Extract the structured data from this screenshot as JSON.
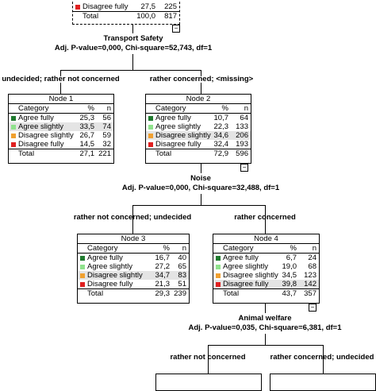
{
  "colors": {
    "agree_fully": "#1f7a2e",
    "agree_slightly": "#8fe28c",
    "disagree_slightly": "#f0a030",
    "disagree_fully": "#e02020",
    "highlight": "#e4e4e4"
  },
  "top_node": {
    "rows": [
      {
        "label": "Disagree fully",
        "pct": "27,5",
        "n": "225"
      }
    ],
    "total": {
      "label": "Total",
      "pct": "100,0",
      "n": "817"
    }
  },
  "split1": {
    "variable": "Transport Safety",
    "stat": "Adj. P-value=0,000, Chi-square=52,743, df=1"
  },
  "branches1": [
    "undecided; rather not concerned",
    "rather concerned;  <missing>"
  ],
  "node1": {
    "title": "Node 1",
    "header": {
      "category": "Category",
      "pct": "%",
      "n": "n"
    },
    "rows": [
      {
        "label": "Agree fully",
        "pct": "25,3",
        "n": "56"
      },
      {
        "label": "Agree slightly",
        "pct": "33,5",
        "n": "74"
      },
      {
        "label": "Disagree slightly",
        "pct": "26,7",
        "n": "59"
      },
      {
        "label": "Disagree fully",
        "pct": "14,5",
        "n": "32"
      }
    ],
    "total": {
      "label": "Total",
      "pct": "27,1",
      "n": "221"
    }
  },
  "node2": {
    "title": "Node 2",
    "header": {
      "category": "Category",
      "pct": "%",
      "n": "n"
    },
    "rows": [
      {
        "label": "Agree fully",
        "pct": "10,7",
        "n": "64"
      },
      {
        "label": "Agree slightly",
        "pct": "22,3",
        "n": "133"
      },
      {
        "label": "Disagree slightly",
        "pct": "34,6",
        "n": "206"
      },
      {
        "label": "Disagree fully",
        "pct": "32,4",
        "n": "193"
      }
    ],
    "total": {
      "label": "Total",
      "pct": "72,9",
      "n": "596"
    }
  },
  "split2": {
    "variable": "Noise",
    "stat": "Adj. P-value=0,000, Chi-square=32,488, df=1"
  },
  "branches2": [
    "rather not concerned; undecided",
    "rather concerned"
  ],
  "node3": {
    "title": "Node 3",
    "header": {
      "category": "Category",
      "pct": "%",
      "n": "n"
    },
    "rows": [
      {
        "label": "Agree fully",
        "pct": "16,7",
        "n": "40"
      },
      {
        "label": "Agree slightly",
        "pct": "27,2",
        "n": "65"
      },
      {
        "label": "Disagree slightly",
        "pct": "34,7",
        "n": "83"
      },
      {
        "label": "Disagree fully",
        "pct": "21,3",
        "n": "51"
      }
    ],
    "total": {
      "label": "Total",
      "pct": "29,3",
      "n": "239"
    }
  },
  "node4": {
    "title": "Node 4",
    "header": {
      "category": "Category",
      "pct": "%",
      "n": "n"
    },
    "rows": [
      {
        "label": "Agree fully",
        "pct": "6,7",
        "n": "24"
      },
      {
        "label": "Agree slightly",
        "pct": "19,0",
        "n": "68"
      },
      {
        "label": "Disagree slightly",
        "pct": "34,5",
        "n": "123"
      },
      {
        "label": "Disagree fully",
        "pct": "39,8",
        "n": "142"
      }
    ],
    "total": {
      "label": "Total",
      "pct": "43,7",
      "n": "357"
    }
  },
  "split3": {
    "variable": "Animal welfare",
    "stat": "Adj. P-value=0,035, Chi-square=6,381, df=1"
  },
  "branches3": [
    "rather not concerned",
    "rather concerned; undecided"
  ],
  "collapse_symbol": "−"
}
